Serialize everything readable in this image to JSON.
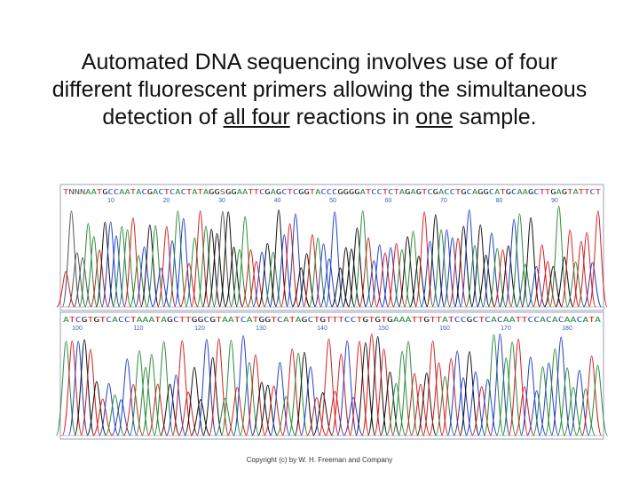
{
  "title": {
    "lines": [
      [
        {
          "text": "Automated DNA sequencing involves use of four"
        }
      ],
      [
        {
          "text": "different fluorescent primers allowing the simultaneous"
        }
      ],
      [
        {
          "text": "detection of "
        },
        {
          "text": "all four",
          "underline": true
        },
        {
          "text": " reactions in "
        },
        {
          "text": "one",
          "underline": true
        },
        {
          "text": " sample."
        }
      ]
    ]
  },
  "base_colors": {
    "A": "#2e8b3e",
    "C": "#2440c8",
    "G": "#111111",
    "T": "#d42020",
    "N": "#555555",
    "S": "#555555"
  },
  "panels": [
    {
      "sequence": "TNNNAATGCCAATACGACTCACTATAGGSGGAATTCGAGCTCGGTACCCGGGGATCCTCTAGAGTCGACCTGCAGGCATGCAAGCTTGAGTATTCT",
      "positions": [
        "10",
        "20",
        "30",
        "40",
        "50",
        "60",
        "70",
        "80",
        "90"
      ]
    },
    {
      "sequence": "ATCGTGTCACCTAAATAGCTTGGCGTAATCATGGTCATAGCTGTTTCCTGTGTGAAATTGTTATCCGCTCACAATTCCACACAACATA",
      "positions": [
        "100",
        "110",
        "120",
        "130",
        "140",
        "150",
        "160",
        "170",
        "180"
      ]
    }
  ],
  "copyright": "Copyright (c) by W. H. Freeman and Company"
}
